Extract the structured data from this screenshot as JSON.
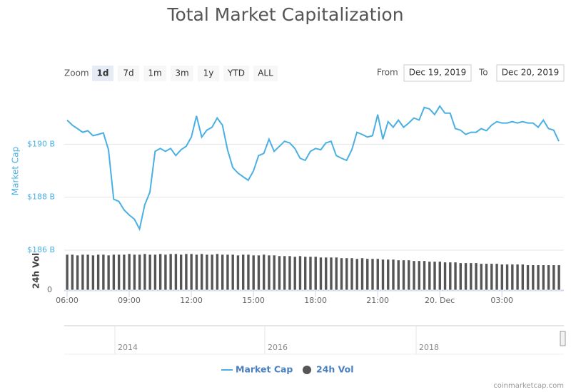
{
  "chart_data": {
    "type": "line",
    "title": "Total Market Capitalization",
    "range_selector": {
      "label": "Zoom",
      "buttons": [
        "1d",
        "7d",
        "1m",
        "3m",
        "1y",
        "YTD",
        "ALL"
      ],
      "selected": 0,
      "from_label": "From",
      "from": "Dec 19, 2019",
      "to_label": "To",
      "to": "Dec 20, 2019"
    },
    "y_label": "Market Cap",
    "y2_label": "24h Vol",
    "x": [
      "2019-12-19 06:00",
      "2019-12-19 06:15",
      "2019-12-19 06:30",
      "2019-12-19 06:45",
      "2019-12-19 07:00",
      "2019-12-19 07:15",
      "2019-12-19 07:30",
      "2019-12-19 07:45",
      "2019-12-19 08:00",
      "2019-12-19 08:15",
      "2019-12-19 08:30",
      "2019-12-19 08:45",
      "2019-12-19 09:00",
      "2019-12-19 09:15",
      "2019-12-19 09:30",
      "2019-12-19 09:45",
      "2019-12-19 10:00",
      "2019-12-19 10:15",
      "2019-12-19 10:30",
      "2019-12-19 10:45",
      "2019-12-19 11:00",
      "2019-12-19 11:15",
      "2019-12-19 11:30",
      "2019-12-19 11:45",
      "2019-12-19 12:00",
      "2019-12-19 12:15",
      "2019-12-19 12:30",
      "2019-12-19 12:45",
      "2019-12-19 13:00",
      "2019-12-19 13:15",
      "2019-12-19 13:30",
      "2019-12-19 13:45",
      "2019-12-19 14:00",
      "2019-12-19 14:15",
      "2019-12-19 14:30",
      "2019-12-19 14:45",
      "2019-12-19 15:00",
      "2019-12-19 15:15",
      "2019-12-19 15:30",
      "2019-12-19 15:45",
      "2019-12-19 16:00",
      "2019-12-19 16:15",
      "2019-12-19 16:30",
      "2019-12-19 16:45",
      "2019-12-19 17:00",
      "2019-12-19 17:15",
      "2019-12-19 17:30",
      "2019-12-19 17:45",
      "2019-12-19 18:00",
      "2019-12-19 18:15",
      "2019-12-19 18:30",
      "2019-12-19 18:45",
      "2019-12-19 19:00",
      "2019-12-19 19:15",
      "2019-12-19 19:30",
      "2019-12-19 19:45",
      "2019-12-19 20:00",
      "2019-12-19 20:15",
      "2019-12-19 20:30",
      "2019-12-19 20:45",
      "2019-12-19 21:00",
      "2019-12-19 21:15",
      "2019-12-19 21:30",
      "2019-12-19 21:45",
      "2019-12-19 22:00",
      "2019-12-19 22:15",
      "2019-12-19 22:30",
      "2019-12-19 22:45",
      "2019-12-19 23:00",
      "2019-12-19 23:15",
      "2019-12-19 23:30",
      "2019-12-19 23:45",
      "2019-12-20 00:00",
      "2019-12-20 00:15",
      "2019-12-20 00:30",
      "2019-12-20 00:45",
      "2019-12-20 01:00",
      "2019-12-20 01:15",
      "2019-12-20 01:30",
      "2019-12-20 01:45",
      "2019-12-20 02:00",
      "2019-12-20 02:15",
      "2019-12-20 02:30",
      "2019-12-20 02:45",
      "2019-12-20 03:00",
      "2019-12-20 03:15",
      "2019-12-20 03:30",
      "2019-12-20 03:45",
      "2019-12-20 04:00",
      "2019-12-20 04:15",
      "2019-12-20 04:30",
      "2019-12-20 04:45",
      "2019-12-20 05:00",
      "2019-12-20 05:15",
      "2019-12-20 05:30",
      "2019-12-20 05:45"
    ],
    "series": [
      {
        "name": "Market Cap",
        "color": "#4ab0e3",
        "values": [
          190.91,
          190.72,
          190.59,
          190.45,
          190.51,
          190.32,
          190.37,
          190.43,
          189.79,
          187.92,
          187.84,
          187.52,
          187.33,
          187.17,
          186.8,
          187.71,
          188.19,
          189.73,
          189.84,
          189.73,
          189.84,
          189.57,
          189.79,
          189.92,
          190.27,
          191.07,
          190.27,
          190.53,
          190.64,
          190.99,
          190.72,
          189.79,
          189.12,
          188.91,
          188.77,
          188.64,
          188.99,
          189.57,
          189.65,
          190.19,
          189.73,
          189.92,
          190.11,
          190.05,
          189.84,
          189.47,
          189.39,
          189.73,
          189.84,
          189.79,
          190.05,
          190.11,
          189.57,
          189.47,
          189.39,
          189.79,
          190.45,
          190.37,
          190.27,
          190.32,
          191.12,
          190.19,
          190.85,
          190.64,
          190.91,
          190.64,
          190.8,
          190.99,
          190.91,
          191.39,
          191.33,
          191.12,
          191.44,
          191.17,
          191.17,
          190.59,
          190.53,
          190.37,
          190.45,
          190.45,
          190.59,
          190.51,
          190.72,
          190.85,
          190.8,
          190.8,
          190.85,
          190.8,
          190.85,
          190.8,
          190.8,
          190.64,
          190.91,
          190.59,
          190.53,
          190.11
        ]
      },
      {
        "name": "24h Vol",
        "color": "#555555",
        "axis": "y2",
        "values": [
          51,
          51,
          50,
          51,
          51,
          50,
          51,
          51,
          50,
          51,
          51,
          51,
          52,
          51,
          51,
          52,
          51,
          51,
          52,
          51,
          52,
          52,
          51,
          52,
          52,
          51,
          52,
          51,
          51,
          52,
          51,
          51,
          51,
          50,
          51,
          51,
          50,
          50,
          51,
          50,
          50,
          49,
          49,
          49,
          48,
          49,
          48,
          48,
          48,
          47,
          47,
          47,
          47,
          46,
          46,
          46,
          45,
          46,
          45,
          45,
          45,
          44,
          44,
          44,
          43,
          43,
          43,
          42,
          42,
          42,
          41,
          41,
          41,
          40,
          40,
          40,
          39,
          39,
          39,
          39,
          38,
          38,
          38,
          38,
          37,
          37,
          37,
          37,
          37,
          36,
          36,
          36,
          36,
          36,
          36,
          36
        ]
      }
    ],
    "xlim": [
      "2019-12-19 06:00",
      "2019-12-20 05:45"
    ],
    "xticks": [
      {
        "value": "2019-12-19 06:00",
        "label": "06:00"
      },
      {
        "value": "2019-12-19 09:00",
        "label": "09:00"
      },
      {
        "value": "2019-12-19 12:00",
        "label": "12:00"
      },
      {
        "value": "2019-12-19 15:00",
        "label": "15:00"
      },
      {
        "value": "2019-12-19 18:00",
        "label": "18:00"
      },
      {
        "value": "2019-12-19 21:00",
        "label": "21:00"
      },
      {
        "value": "2019-12-20 00:00",
        "label": "20. Dec"
      },
      {
        "value": "2019-12-20 03:00",
        "label": "03:00"
      }
    ],
    "ylim": [
      186,
      192
    ],
    "yticks": [
      {
        "value": 186,
        "label": "$186 B"
      },
      {
        "value": 188,
        "label": "$188 B"
      },
      {
        "value": 190,
        "label": "$190 B"
      }
    ],
    "y2lim": [
      0,
      55
    ],
    "y2ticks": [
      0
    ],
    "grid": true,
    "navigator_labels": [
      "2014",
      "2016",
      "2018"
    ],
    "credit": "coinmarketcap.com"
  }
}
